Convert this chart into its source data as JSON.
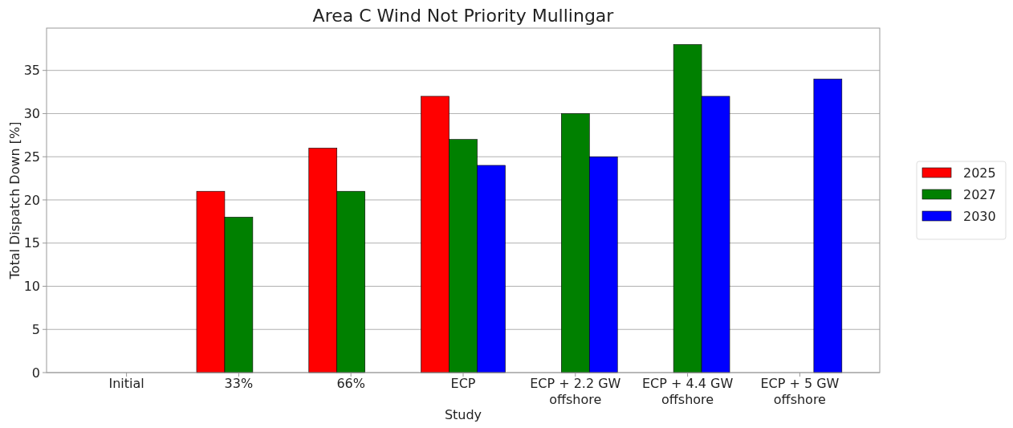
{
  "chart_data": {
    "type": "bar",
    "title": "Area C Wind Not Priority Mullingar",
    "xlabel": "Study",
    "ylabel": "Total Dispatch Down [%]",
    "categories": [
      "Initial",
      "33%",
      "66%",
      "ECP",
      "ECP + 2.2 GW\noffshore",
      "ECP + 4.4 GW\noffshore",
      "ECP + 5 GW\noffshore"
    ],
    "series": [
      {
        "name": "2025",
        "color": "#ff0000",
        "values": [
          null,
          21,
          26,
          32,
          null,
          null,
          null
        ]
      },
      {
        "name": "2027",
        "color": "#008000",
        "values": [
          null,
          18,
          21,
          27,
          30,
          38,
          null
        ]
      },
      {
        "name": "2030",
        "color": "#0000ff",
        "values": [
          null,
          null,
          null,
          24,
          25,
          32,
          34
        ]
      }
    ],
    "ylim": [
      0,
      39.9
    ],
    "yticks": [
      0,
      5,
      10,
      15,
      20,
      25,
      30,
      35
    ],
    "grid": "y",
    "legend": "right"
  }
}
